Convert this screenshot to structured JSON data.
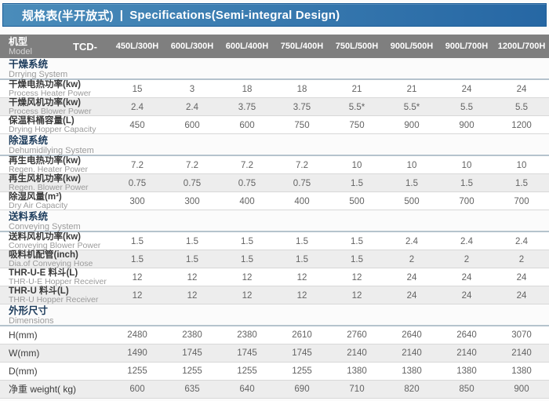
{
  "title_bar": {
    "title_zh": "规格表(半开放式)",
    "separator": "|",
    "title_en": "Specifications(Semi-integral Design)"
  },
  "table": {
    "header": {
      "label_zh": "机型",
      "label_en": "Model",
      "prefix": "TCD-",
      "columns": [
        "450L/300H",
        "600L/300H",
        "600L/400H",
        "750L/400H",
        "750L/500H",
        "900L/500H",
        "900L/700H",
        "1200L/700H"
      ]
    },
    "sections": [
      {
        "title_zh": "干燥系统",
        "title_en": "Drrying System",
        "rows": [
          {
            "label_zh": "干燥电热功率(kw)",
            "label_en": "Process Heater Power",
            "values": [
              "15",
              "3",
              "18",
              "18",
              "21",
              "21",
              "24",
              "24"
            ]
          },
          {
            "label_zh": "干燥风机功率(kw)",
            "label_en": "Process Blower Power",
            "values": [
              "2.4",
              "2.4",
              "3.75",
              "3.75",
              "5.5*",
              "5.5*",
              "5.5",
              "5.5"
            ]
          },
          {
            "label_zh": "保温料桶容量(L)",
            "label_en": "Drying Hopper Capacity",
            "values": [
              "450",
              "600",
              "600",
              "750",
              "750",
              "900",
              "900",
              "1200"
            ]
          }
        ]
      },
      {
        "title_zh": "除湿系统",
        "title_en": "Dehumidilying System",
        "rows": [
          {
            "label_zh": "再生电热功率(kw)",
            "label_en": "Regen. Heater Power",
            "values": [
              "7.2",
              "7.2",
              "7.2",
              "7.2",
              "10",
              "10",
              "10",
              "10"
            ]
          },
          {
            "label_zh": "再生风机功率(kw)",
            "label_en": "Regen. Blower Power",
            "values": [
              "0.75",
              "0.75",
              "0.75",
              "0.75",
              "1.5",
              "1.5",
              "1.5",
              "1.5"
            ]
          },
          {
            "label_zh": "除湿风量(m³)",
            "label_en": "Dry Air Capacity",
            "values": [
              "300",
              "300",
              "400",
              "400",
              "500",
              "500",
              "700",
              "700"
            ]
          }
        ]
      },
      {
        "title_zh": "送料系统",
        "title_en": "Conveying System",
        "rows": [
          {
            "label_zh": "送料风机功率(kw)",
            "label_en": "Conveying Blower Power",
            "values": [
              "1.5",
              "1.5",
              "1.5",
              "1.5",
              "1.5",
              "2.4",
              "2.4",
              "2.4"
            ]
          },
          {
            "label_zh": "吸料机配管(inch)",
            "label_en": "Dia.of Conveying Hose",
            "values": [
              "1.5",
              "1.5",
              "1.5",
              "1.5",
              "1.5",
              "2",
              "2",
              "2"
            ]
          },
          {
            "label_zh": "THR-U-E 料斗(L)",
            "label_en": "THR-U-E Hopper Receiver",
            "values": [
              "12",
              "12",
              "12",
              "12",
              "12",
              "24",
              "24",
              "24"
            ]
          },
          {
            "label_zh": "THR-U 料斗(L)",
            "label_en": "THR-U Hopper Receiver",
            "values": [
              "12",
              "12",
              "12",
              "12",
              "12",
              "24",
              "24",
              "24"
            ]
          }
        ]
      },
      {
        "title_zh": "外形尺寸",
        "title_en": "Dimensions",
        "rows": [
          {
            "label_zh": "H(mm)",
            "label_en": "",
            "values": [
              "2480",
              "2380",
              "2380",
              "2610",
              "2760",
              "2640",
              "2640",
              "3070"
            ]
          },
          {
            "label_zh": "W(mm)",
            "label_en": "",
            "values": [
              "1490",
              "1745",
              "1745",
              "1745",
              "2140",
              "2140",
              "2140",
              "2140"
            ]
          },
          {
            "label_zh": "D(mm)",
            "label_en": "",
            "values": [
              "1255",
              "1255",
              "1255",
              "1255",
              "1380",
              "1380",
              "1380",
              "1380"
            ]
          },
          {
            "label_zh": "净重 weight( kg)",
            "label_en": "",
            "values": [
              "600",
              "635",
              "640",
              "690",
              "710",
              "820",
              "850",
              "900"
            ]
          }
        ]
      }
    ]
  },
  "colors": {
    "title_bar_gradient_start": "#4a8cba",
    "title_bar_gradient_end": "#2667a4",
    "title_bar_border": "#1d5e98",
    "header_row_bg": "#7f7f7f",
    "section_title": "#1d3c5c",
    "section_underline": "#b5c3cd",
    "row_stripe": "#ededed",
    "row_border": "#d8d8d8",
    "value_text": "#636363"
  }
}
